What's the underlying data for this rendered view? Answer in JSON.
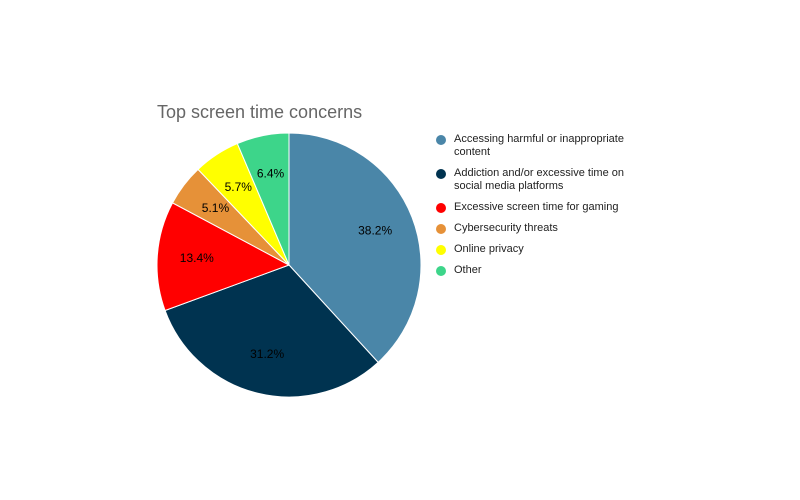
{
  "chart_data": {
    "type": "pie",
    "title": "Top screen time concerns",
    "categories": [
      "Accessing harmful or inappropriate content",
      "Addiction and/or excessive time on social media platforms",
      "Excessive screen time for gaming",
      "Cybersecurity threats",
      "Online privacy",
      "Other"
    ],
    "values": [
      38.2,
      31.2,
      13.4,
      5.1,
      5.7,
      6.4
    ],
    "value_labels": [
      "38.2%",
      "31.2%",
      "13.4%",
      "5.1%",
      "5.7%",
      "6.4%"
    ],
    "colors": [
      "#4a86a8",
      "#003350",
      "#ff0000",
      "#e69138",
      "#ffff00",
      "#3dd58a"
    ],
    "legend": "right"
  }
}
